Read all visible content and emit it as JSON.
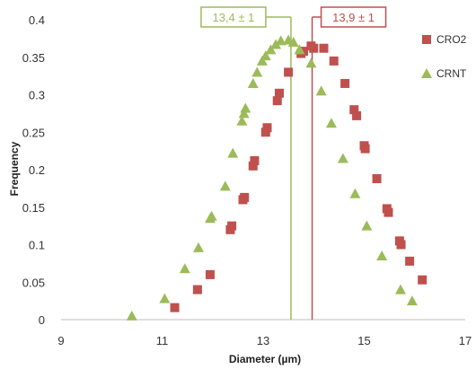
{
  "chart_data": {
    "type": "scatter",
    "title": "",
    "xlabel": "Diameter (µm)",
    "ylabel": "Frequency",
    "xlim": [
      9,
      17
    ],
    "ylim": [
      0,
      0.4
    ],
    "x_ticks": [
      9,
      11,
      13,
      15,
      17
    ],
    "y_ticks": [
      0,
      0.05,
      0.1,
      0.15,
      0.2,
      0.25,
      0.3,
      0.35,
      0.4
    ],
    "y_tick_labels": [
      "0",
      "0.05",
      "0.1",
      "0.15",
      "0.2",
      "0.25",
      "0.3",
      "0.35",
      "0.4"
    ],
    "grid": false,
    "legend_position": "right",
    "series": [
      {
        "name": "CRO2",
        "marker": "square",
        "color": "#c0504d",
        "points": [
          [
            11.25,
            0.016
          ],
          [
            11.7,
            0.04
          ],
          [
            11.95,
            0.06
          ],
          [
            12.35,
            0.12
          ],
          [
            12.38,
            0.125
          ],
          [
            12.6,
            0.16
          ],
          [
            12.63,
            0.163
          ],
          [
            12.8,
            0.205
          ],
          [
            12.83,
            0.212
          ],
          [
            13.05,
            0.25
          ],
          [
            13.08,
            0.256
          ],
          [
            13.28,
            0.292
          ],
          [
            13.32,
            0.302
          ],
          [
            13.5,
            0.33
          ],
          [
            13.75,
            0.355
          ],
          [
            13.8,
            0.358
          ],
          [
            13.95,
            0.365
          ],
          [
            14.0,
            0.362
          ],
          [
            14.2,
            0.362
          ],
          [
            14.4,
            0.345
          ],
          [
            14.62,
            0.315
          ],
          [
            14.8,
            0.28
          ],
          [
            14.85,
            0.272
          ],
          [
            15.0,
            0.232
          ],
          [
            15.02,
            0.228
          ],
          [
            15.25,
            0.188
          ],
          [
            15.45,
            0.148
          ],
          [
            15.48,
            0.143
          ],
          [
            15.7,
            0.105
          ],
          [
            15.73,
            0.1
          ],
          [
            15.9,
            0.078
          ],
          [
            16.15,
            0.053
          ]
        ]
      },
      {
        "name": "CRNT",
        "marker": "triangle",
        "color": "#9bbb59",
        "points": [
          [
            10.4,
            0.005
          ],
          [
            11.05,
            0.028
          ],
          [
            11.45,
            0.068
          ],
          [
            11.72,
            0.096
          ],
          [
            11.95,
            0.135
          ],
          [
            11.98,
            0.138
          ],
          [
            12.25,
            0.178
          ],
          [
            12.4,
            0.222
          ],
          [
            12.58,
            0.265
          ],
          [
            12.62,
            0.275
          ],
          [
            12.65,
            0.282
          ],
          [
            12.8,
            0.315
          ],
          [
            12.88,
            0.33
          ],
          [
            12.98,
            0.345
          ],
          [
            13.05,
            0.352
          ],
          [
            13.15,
            0.36
          ],
          [
            13.25,
            0.367
          ],
          [
            13.35,
            0.372
          ],
          [
            13.5,
            0.373
          ],
          [
            13.6,
            0.37
          ],
          [
            13.72,
            0.36
          ],
          [
            13.95,
            0.342
          ],
          [
            14.15,
            0.305
          ],
          [
            14.35,
            0.262
          ],
          [
            14.58,
            0.215
          ],
          [
            14.82,
            0.168
          ],
          [
            15.05,
            0.125
          ],
          [
            15.35,
            0.085
          ],
          [
            15.72,
            0.04
          ],
          [
            15.95,
            0.025
          ]
        ]
      }
    ],
    "annotations": [
      {
        "label": "13,4 ± 1",
        "x": 13.55,
        "color": "#9bbb59",
        "side": "left"
      },
      {
        "label": "13,9 ± 1",
        "x": 13.97,
        "color": "#c0504d",
        "side": "right"
      }
    ]
  }
}
